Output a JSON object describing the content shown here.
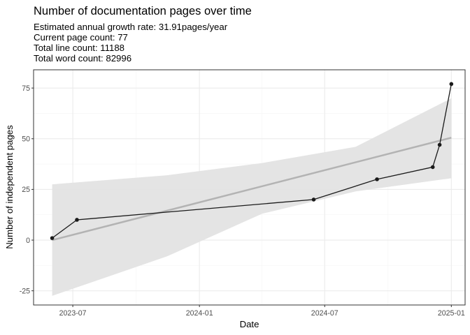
{
  "chart_data": {
    "type": "line",
    "title": "Number of documentation pages over time",
    "subtitle_lines": [
      "Estimated annual growth rate: 31.91pages/year",
      "Current page count: 77",
      "Total line count: 11188",
      "Total word count: 82996"
    ],
    "xlabel": "Date",
    "ylabel": "Number of independent pages",
    "x_ticks": [
      "2023-07",
      "2024-01",
      "2024-07",
      "2025-01"
    ],
    "x_tick_dates": [
      "2023-07-01",
      "2024-01-01",
      "2024-07-01",
      "2025-01-01"
    ],
    "y_ticks": [
      -25,
      0,
      25,
      50,
      75
    ],
    "xlim": [
      "2023-05-05",
      "2025-01-21"
    ],
    "ylim": [
      -32,
      84
    ],
    "grid": true,
    "series": [
      {
        "values": [
          {
            "x": "2023-06-01",
            "y": 1
          },
          {
            "x": "2023-07-07",
            "y": 10
          },
          {
            "x": "2024-06-15",
            "y": 20
          },
          {
            "x": "2024-09-15",
            "y": 30
          },
          {
            "x": "2024-12-05",
            "y": 36
          },
          {
            "x": "2024-12-15",
            "y": 47
          },
          {
            "x": "2025-01-01",
            "y": 77
          }
        ]
      }
    ],
    "trend": {
      "method": "linear fit with confidence band",
      "x_start": "2023-06-01",
      "y_start": 0,
      "x_end": "2025-01-01",
      "y_end": 50.5,
      "band": [
        {
          "x": "2023-06-01",
          "lo": -27.5,
          "hi": 27.5
        },
        {
          "x": "2023-11-15",
          "lo": -8,
          "hi": 32
        },
        {
          "x": "2024-04-01",
          "lo": 13,
          "hi": 38
        },
        {
          "x": "2024-08-15",
          "lo": 24,
          "hi": 46
        },
        {
          "x": "2025-01-01",
          "lo": 30.5,
          "hi": 70
        }
      ]
    },
    "colors": {
      "line": "#1a1a1a",
      "trend": "#b3b3b3",
      "band": "#e3e3e3",
      "grid_major": "#ebebeb",
      "grid_minor": "#f5f5f5",
      "border": "#333333"
    }
  }
}
